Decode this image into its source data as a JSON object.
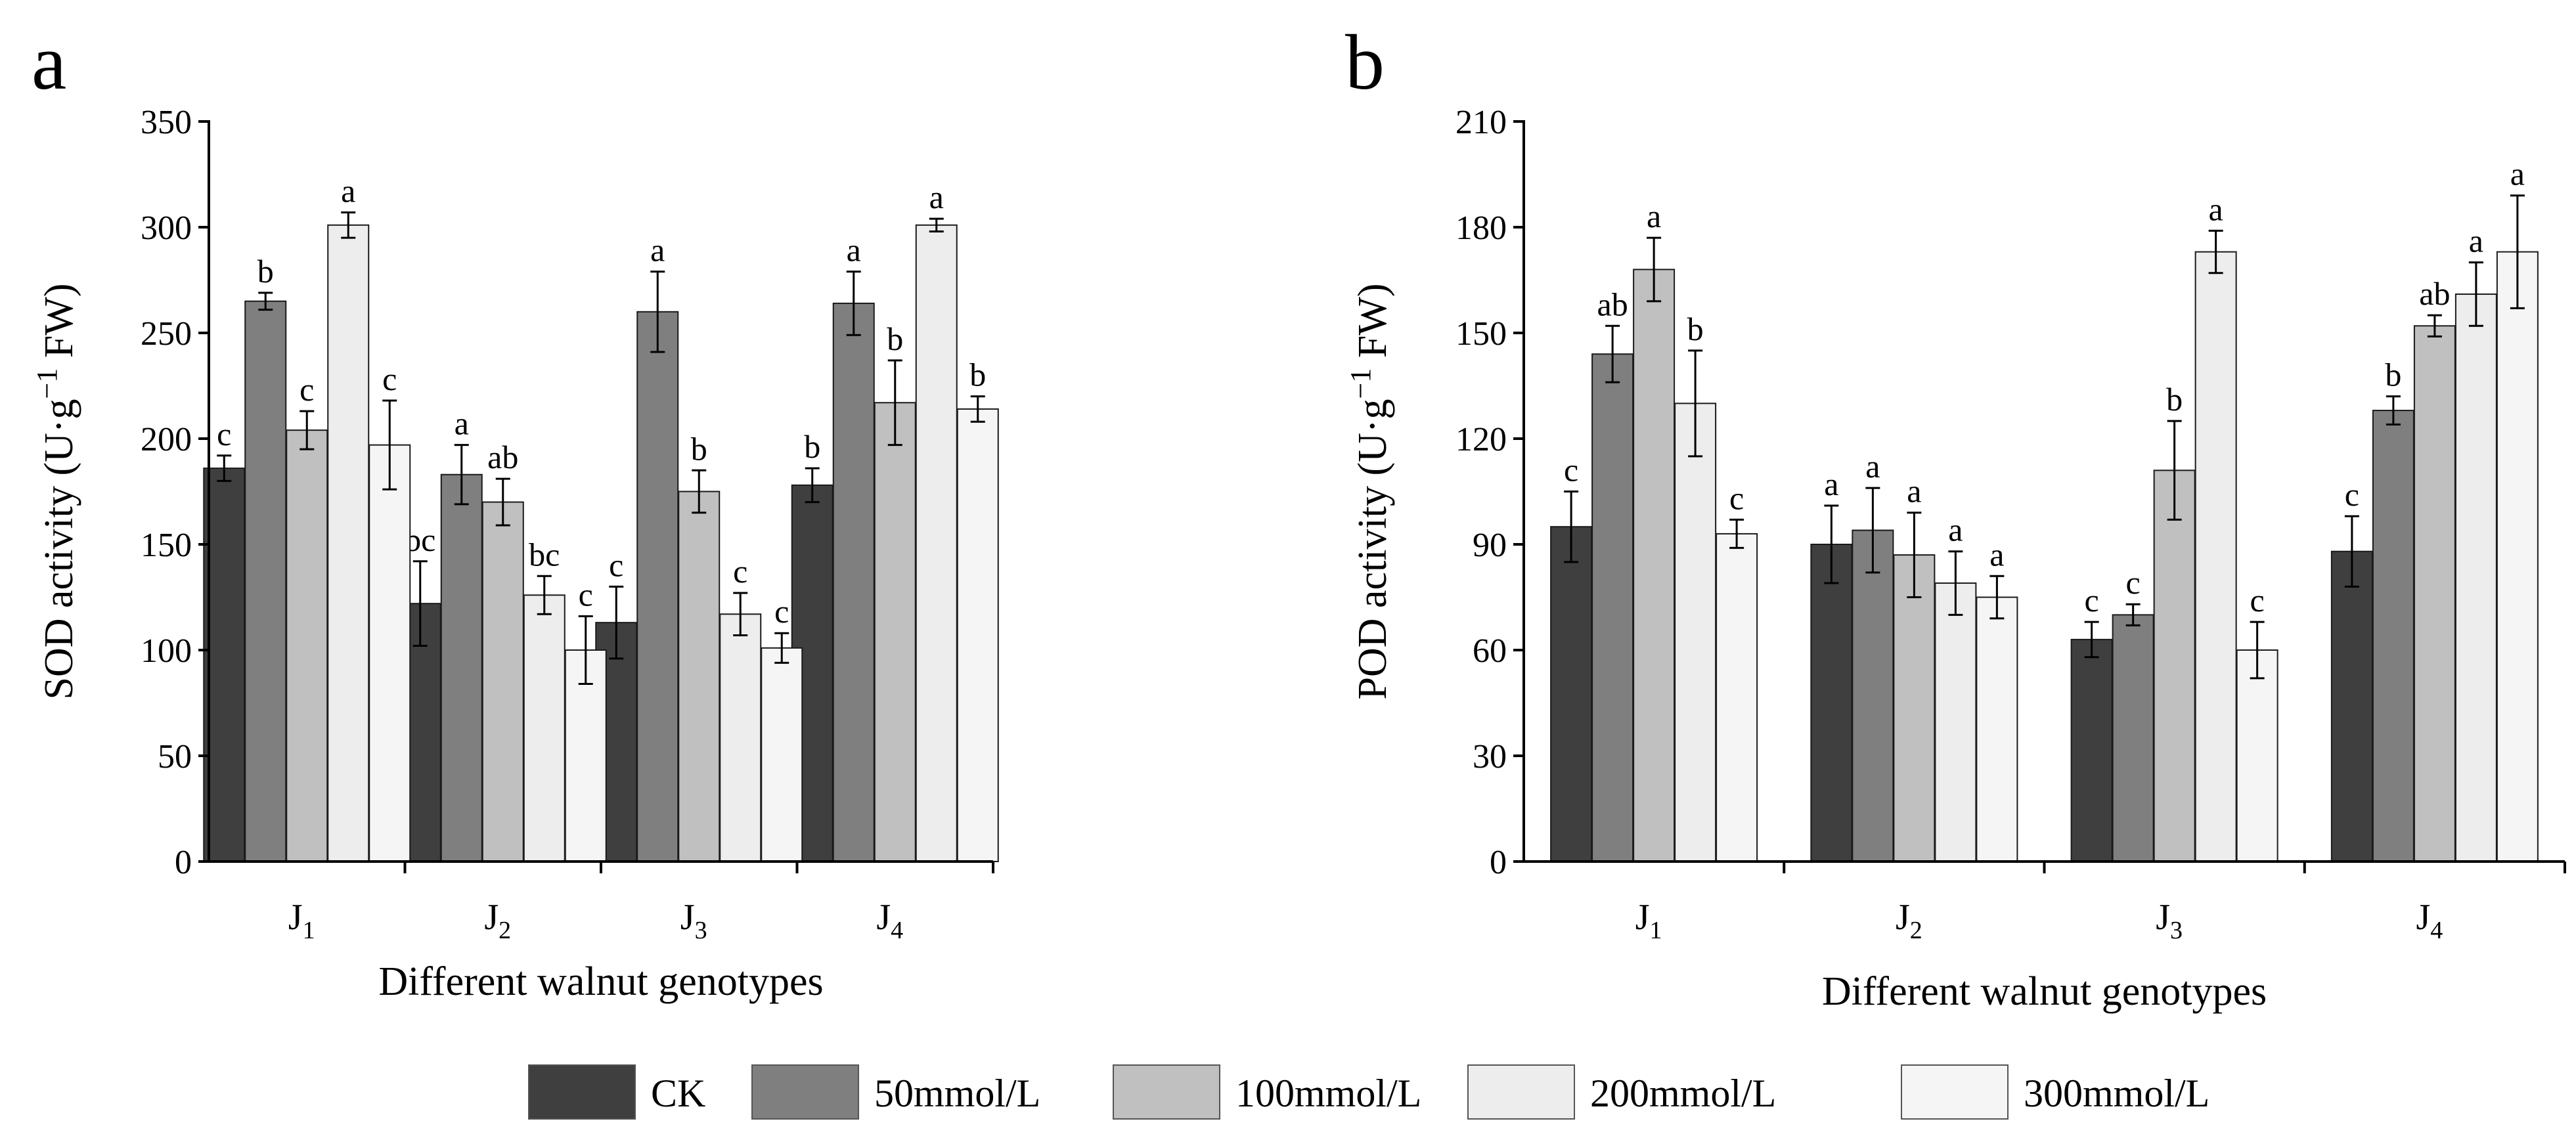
{
  "chart_data": [
    {
      "panel_label": "a",
      "type": "bar",
      "ylabel": "SOD activity (U·g",
      "ylabel_sup": "−1",
      "ylabel_tail": " FW)",
      "xlabel": "Different walnut genotypes",
      "ylim": [
        0,
        350
      ],
      "yticks": [
        "0",
        "50",
        "100",
        "150",
        "200",
        "250",
        "300",
        "350"
      ],
      "categories": [
        {
          "main": "J",
          "sub": "1"
        },
        {
          "main": "J",
          "sub": "2"
        },
        {
          "main": "J",
          "sub": "3"
        },
        {
          "main": "J",
          "sub": "4"
        }
      ],
      "series": [
        {
          "name": "CK",
          "color": "#3f3f3f",
          "values": [
            186,
            122,
            113,
            178
          ],
          "errors": [
            6,
            20,
            17,
            8
          ],
          "labels": [
            "c",
            "bc",
            "c",
            "b"
          ]
        },
        {
          "name": "50mmol/L",
          "color": "#7f7f7f",
          "values": [
            265,
            183,
            260,
            264
          ],
          "errors": [
            4,
            14,
            19,
            15
          ],
          "labels": [
            "b",
            "a",
            "a",
            "a"
          ]
        },
        {
          "name": "100mmol/L",
          "color": "#c0c0c0",
          "values": [
            204,
            170,
            175,
            217
          ],
          "errors": [
            9,
            11,
            10,
            20
          ],
          "labels": [
            "c",
            "ab",
            "b",
            "b"
          ]
        },
        {
          "name": "200mmol/L",
          "color": "#ededed",
          "values": [
            301,
            126,
            117,
            301
          ],
          "errors": [
            6,
            9,
            10,
            3
          ],
          "labels": [
            "a",
            "bc",
            "c",
            "a"
          ]
        },
        {
          "name": "300mmol/L",
          "color": "#f5f5f5",
          "values": [
            197,
            100,
            101,
            214
          ],
          "errors": [
            21,
            16,
            7,
            6
          ],
          "labels": [
            "c",
            "c",
            "c",
            "b"
          ]
        }
      ]
    },
    {
      "panel_label": "b",
      "type": "bar",
      "ylabel": "POD activity (U·g",
      "ylabel_sup": "−1",
      "ylabel_tail": " FW)",
      "xlabel": "Different walnut genotypes",
      "ylim": [
        0,
        210
      ],
      "yticks": [
        "0",
        "30",
        "60",
        "90",
        "120",
        "150",
        "180",
        "210"
      ],
      "categories": [
        {
          "main": "J",
          "sub": "1"
        },
        {
          "main": "J",
          "sub": "2"
        },
        {
          "main": "J",
          "sub": "3"
        },
        {
          "main": "J",
          "sub": "4"
        }
      ],
      "series": [
        {
          "name": "CK",
          "color": "#3f3f3f",
          "values": [
            95,
            90,
            63,
            88
          ],
          "errors": [
            10,
            11,
            5,
            10
          ],
          "labels": [
            "c",
            "a",
            "c",
            "c"
          ]
        },
        {
          "name": "50mmol/L",
          "color": "#7f7f7f",
          "values": [
            144,
            94,
            70,
            128
          ],
          "errors": [
            8,
            12,
            3,
            4
          ],
          "labels": [
            "ab",
            "a",
            "c",
            "b"
          ]
        },
        {
          "name": "100mmol/L",
          "color": "#c0c0c0",
          "values": [
            168,
            87,
            111,
            152
          ],
          "errors": [
            9,
            12,
            14,
            3
          ],
          "labels": [
            "a",
            "a",
            "b",
            "ab"
          ]
        },
        {
          "name": "200mmol/L",
          "color": "#ededed",
          "values": [
            130,
            79,
            173,
            161
          ],
          "errors": [
            15,
            9,
            6,
            9
          ],
          "labels": [
            "b",
            "a",
            "a",
            "a"
          ]
        },
        {
          "name": "300mmol/L",
          "color": "#f5f5f5",
          "values": [
            93,
            75,
            60,
            173
          ],
          "errors": [
            4,
            6,
            8,
            16
          ],
          "labels": [
            "c",
            "a",
            "c",
            "a"
          ]
        }
      ]
    }
  ],
  "legend": [
    {
      "label": "CK",
      "color": "#3f3f3f"
    },
    {
      "label": "50mmol/L",
      "color": "#7f7f7f"
    },
    {
      "label": "100mmol/L",
      "color": "#c0c0c0"
    },
    {
      "label": "200mmol/L",
      "color": "#ededed"
    },
    {
      "label": "300mmol/L",
      "color": "#f5f5f5"
    }
  ]
}
